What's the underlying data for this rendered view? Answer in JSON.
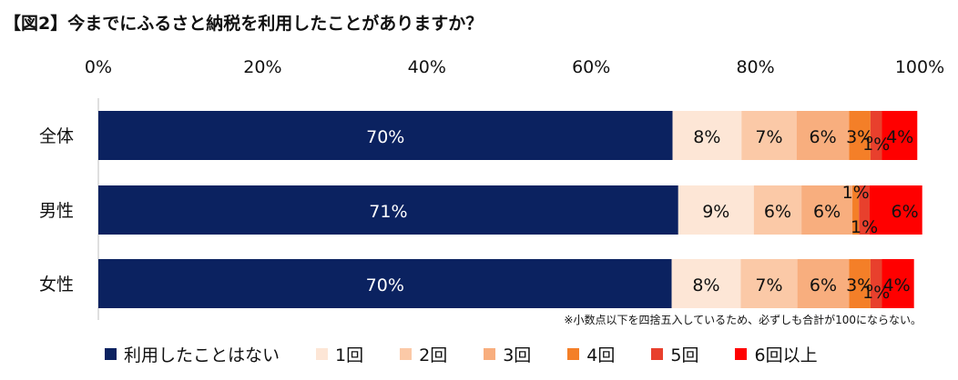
{
  "title": "【図2】今までにふるさと納税を利用したことがありますか？",
  "note": "※小数点以下を四捨五入しているため、必ずしも合計が100にならない。",
  "colors": [
    "#0b2260",
    "#fde6d6",
    "#fbc9a7",
    "#f8ae7e",
    "#f47f28",
    "#e8402d",
    "#ff0000"
  ],
  "chart_data": {
    "type": "bar",
    "orientation": "horizontal",
    "stacked": true,
    "categories": [
      "全体",
      "男性",
      "女性"
    ],
    "x_ticks": [
      "0%",
      "20%",
      "40%",
      "60%",
      "80%",
      "100%"
    ],
    "xlim": [
      0,
      100
    ],
    "legend_position": "bottom",
    "series": [
      {
        "name": "利用したことはない",
        "values": [
          69.9,
          70.6,
          69.8
        ],
        "labels": [
          "70%",
          "71%",
          "70%"
        ]
      },
      {
        "name": "1回",
        "values": [
          8.4,
          9.2,
          8.4
        ],
        "labels": [
          "8%",
          "9%",
          "8%"
        ]
      },
      {
        "name": "2回",
        "values": [
          6.7,
          5.8,
          6.9
        ],
        "labels": [
          "7%",
          "6%",
          "7%"
        ]
      },
      {
        "name": "3回",
        "values": [
          6.4,
          6.2,
          6.3
        ],
        "labels": [
          "6%",
          "6%",
          "6%"
        ]
      },
      {
        "name": "4回",
        "values": [
          2.6,
          0.8,
          2.6
        ],
        "labels": [
          "3%",
          "1%",
          "3%"
        ]
      },
      {
        "name": "5回",
        "values": [
          1.4,
          1.3,
          1.4
        ],
        "labels": [
          "1%",
          "1%",
          "1%"
        ]
      },
      {
        "name": "6回以上",
        "values": [
          4.3,
          6.4,
          3.9
        ],
        "labels": [
          "4%",
          "6%",
          "4%"
        ]
      }
    ]
  }
}
